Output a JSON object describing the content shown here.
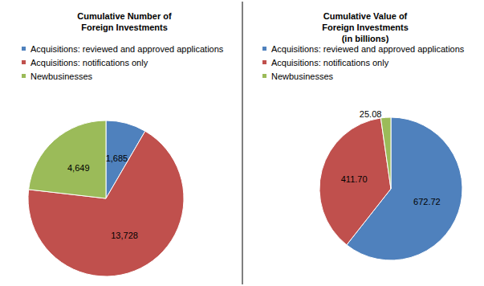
{
  "chart_data": [
    {
      "type": "pie",
      "title": "Cumulative Number of\nForeign Investments",
      "categories": [
        "Acquisitions: reviewed and approved applications",
        "Acquisitions: notifications only",
        "Newbusinesses"
      ],
      "values": [
        1685,
        13728,
        4649
      ],
      "value_labels": [
        "1,685",
        "13,728",
        "4,649"
      ],
      "colors": [
        "#4f81bd",
        "#c0504d",
        "#9bbb59"
      ],
      "data_labels": true,
      "legend": "top"
    },
    {
      "type": "pie",
      "title": "Cumulative Value of\nForeign Investments\n(in billions)",
      "categories": [
        "Acquisitions: reviewed and approved applications",
        "Acquisitions: notifications only",
        "Newbusinesses"
      ],
      "values": [
        672.72,
        411.7,
        25.08
      ],
      "value_labels": [
        "672.72",
        "411.70",
        "25.08"
      ],
      "colors": [
        "#4f81bd",
        "#c0504d",
        "#9bbb59"
      ],
      "data_labels": true,
      "legend": "top"
    }
  ]
}
